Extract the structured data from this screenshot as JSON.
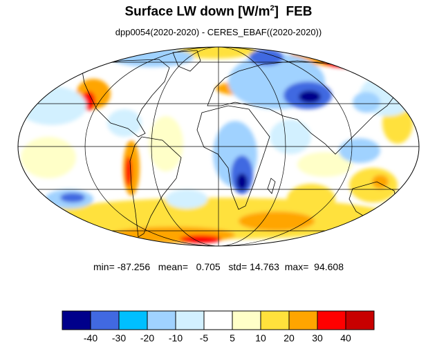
{
  "title": {
    "main_prefix": "Surface LW down [W/m",
    "superscript": "2",
    "main_suffix": "]  FEB",
    "subtitle": "dpp0054(2020-2020) - CERES_EBAF((2020-2020))"
  },
  "stats": {
    "min_label": "min=",
    "min_value": "-87.256",
    "mean_label": "mean=",
    "mean_value": "0.705",
    "std_label": "std=",
    "std_value": "14.763",
    "max_label": "max=",
    "max_value": "94.608"
  },
  "colorbar": {
    "colors": [
      "#00008b",
      "#4169e1",
      "#00bfff",
      "#a0d2ff",
      "#d2f0ff",
      "#ffffff",
      "#ffffc8",
      "#ffe13c",
      "#ffa500",
      "#ff0000",
      "#c80000"
    ],
    "tick_labels": [
      "-40",
      "-30",
      "-20",
      "-10",
      "-5",
      "5",
      "10",
      "20",
      "30",
      "40"
    ]
  }
}
